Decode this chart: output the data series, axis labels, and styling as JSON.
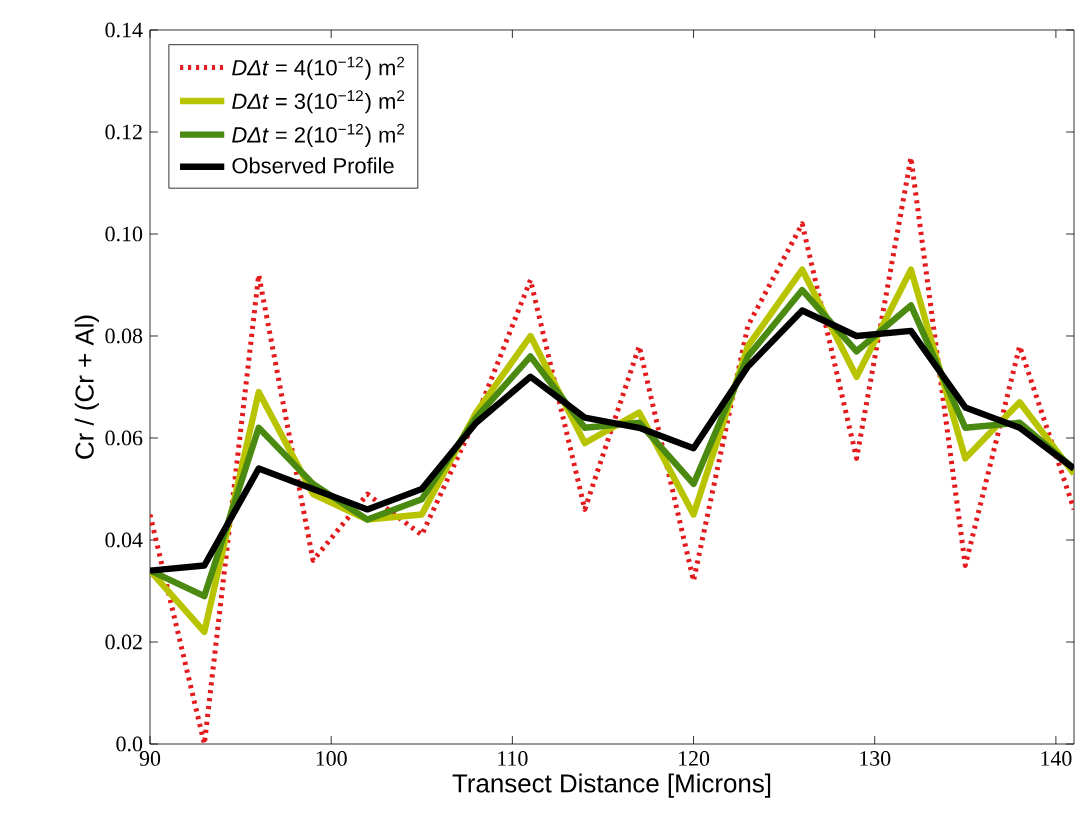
{
  "chart_data": {
    "type": "line",
    "xlabel": "Transect Distance [Microns]",
    "ylabel": "Cr / (Cr + Al)",
    "x": [
      90,
      93,
      96,
      99,
      102,
      105,
      108,
      111,
      114,
      117,
      120,
      123,
      126,
      129,
      132,
      135,
      138,
      141
    ],
    "series": [
      {
        "name": "*DΔt* = 4(10$^{−12}$) m$^{2}$",
        "color": "#e41a1c",
        "line_style": "dotted",
        "values": [
          0.045,
          0.0,
          0.092,
          0.036,
          0.049,
          0.041,
          0.064,
          0.091,
          0.046,
          0.078,
          0.032,
          0.082,
          0.102,
          0.056,
          0.115,
          0.035,
          0.078,
          0.046
        ]
      },
      {
        "name": "*DΔt* = 3(10$^{−12}$) m$^{2}$",
        "color": "#b8c400",
        "line_style": "solid",
        "values": [
          0.034,
          0.022,
          0.069,
          0.049,
          0.044,
          0.045,
          0.065,
          0.08,
          0.059,
          0.065,
          0.045,
          0.078,
          0.093,
          0.072,
          0.093,
          0.056,
          0.067,
          0.053
        ]
      },
      {
        "name": "*DΔt* = 2(10$^{−12}$) m$^{2}$",
        "color": "#4a8a10",
        "line_style": "solid",
        "values": [
          0.034,
          0.029,
          0.062,
          0.051,
          0.044,
          0.048,
          0.064,
          0.076,
          0.062,
          0.063,
          0.051,
          0.076,
          0.089,
          0.077,
          0.086,
          0.062,
          0.063,
          0.054
        ]
      },
      {
        "name": "Observed Profile",
        "color": "#000000",
        "line_style": "solid",
        "values": [
          0.034,
          0.035,
          0.054,
          0.05,
          0.046,
          0.05,
          0.063,
          0.072,
          0.064,
          0.062,
          0.058,
          0.074,
          0.085,
          0.08,
          0.081,
          0.066,
          0.062,
          0.054
        ]
      }
    ],
    "xlim": [
      90,
      141
    ],
    "ylim": [
      0,
      0.14
    ],
    "xticks": [
      90,
      100,
      110,
      120,
      130,
      140
    ],
    "yticks": [
      {
        "value": 0,
        "label": "0.0"
      },
      0.02,
      0.04,
      0.06,
      0.08,
      {
        "value": 0.1,
        "label": "0.10"
      },
      0.12,
      0.14
    ],
    "legend": "top left",
    "grid": false,
    "marker": "none"
  }
}
